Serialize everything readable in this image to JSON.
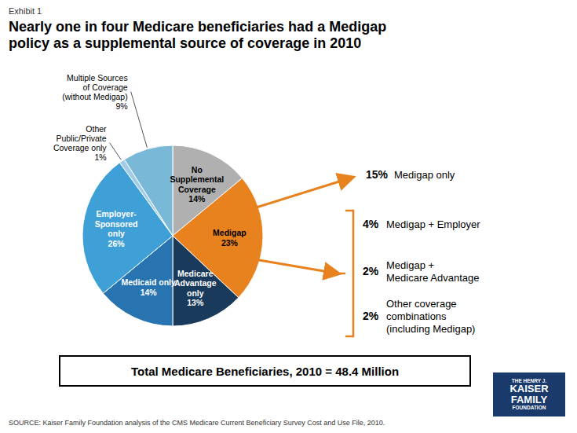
{
  "chart_data": {
    "type": "pie",
    "subtitle": "Exhibit 1",
    "title": "Nearly one in four Medicare beneficiaries had a Medigap\npolicy as a supplemental source of coverage in 2010",
    "categories": [
      "No\nSupplemental\nCoverage",
      "Medigap",
      "Medicare\nAdvantage\nonly",
      "Medicaid only",
      "Employer-\nSponsored\nonly",
      "Other\nPublic/Private\nCoverage only",
      "Multiple Sources\nof Coverage\n(without Medigap)"
    ],
    "values": [
      14,
      23,
      13,
      14,
      26,
      1,
      9
    ],
    "value_labels": [
      "14%",
      "23%",
      "13%",
      "14%",
      "26%",
      "1%",
      "9%"
    ],
    "colors": [
      "#b0b0b0",
      "#e8821e",
      "#1a3a5c",
      "#2874b0",
      "#3fa0d8",
      "#a0cce8",
      "#7ab8d8"
    ],
    "data_labels": true,
    "annotations": {
      "breakdown": {
        "color": "#e8821e",
        "items": [
          {
            "value": 15,
            "label": "15%",
            "text": "Medigap only"
          },
          {
            "value": 4,
            "label": "4%",
            "text": "Medigap + Employer"
          },
          {
            "value": 2,
            "label": "2%",
            "text": "Medigap +\nMedicare Advantage"
          },
          {
            "value": 2,
            "label": "2%",
            "text": "Other coverage\ncombinations\n(including Medigap)"
          }
        ]
      },
      "footer": "Total Medicare Beneficiaries, 2010 = 48.4 Million",
      "source": "SOURCE: Kaiser Family Foundation analysis of the CMS Medicare Current Beneficiary Survey Cost and Use File, 2010.",
      "logo": {
        "lines": [
          "THE HENRY J.",
          "KAISER",
          "FAMILY",
          "FOUNDATION"
        ],
        "color": "#1a3a6b"
      }
    }
  }
}
